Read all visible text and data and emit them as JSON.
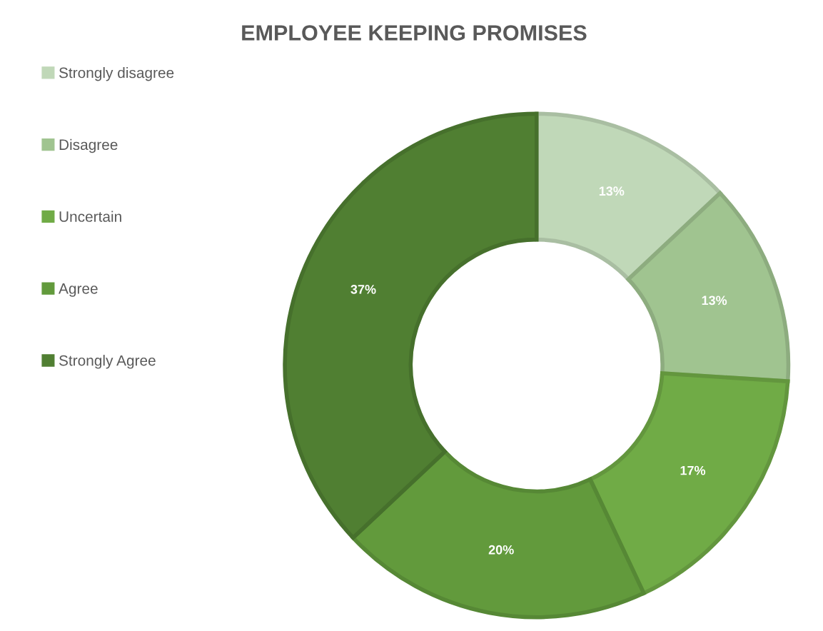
{
  "chart_data": {
    "type": "donut",
    "title": "EMPLOYEE KEEPING PROMISES",
    "categories": [
      "Strongly disagree",
      "Disagree",
      "Uncertain",
      "Agree",
      "Strongly Agree"
    ],
    "values": [
      13,
      13,
      17,
      20,
      37
    ],
    "colors": [
      "#c0d8b8",
      "#a0c490",
      "#70ab46",
      "#629a3c",
      "#507f32"
    ],
    "value_labels": [
      "13%",
      "13%",
      "17%",
      "20%",
      "37%"
    ],
    "legend": "left"
  }
}
